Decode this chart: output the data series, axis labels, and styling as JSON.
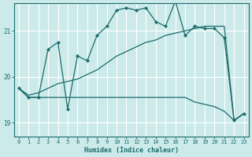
{
  "xlabel": "Humidex (Indice chaleur)",
  "bg_color": "#cceaea",
  "grid_color": "#ffffff",
  "line_color": "#1a6b6b",
  "xlim": [
    -0.5,
    23.5
  ],
  "ylim": [
    18.7,
    21.6
  ],
  "yticks": [
    19,
    20,
    21
  ],
  "xticks": [
    0,
    1,
    2,
    3,
    4,
    5,
    6,
    7,
    8,
    9,
    10,
    11,
    12,
    13,
    14,
    15,
    16,
    17,
    18,
    19,
    20,
    21,
    22,
    23
  ],
  "series1_x": [
    0,
    1,
    2,
    3,
    4,
    5,
    6,
    7,
    8,
    9,
    10,
    11,
    12,
    13,
    14,
    15,
    16,
    17,
    18,
    19,
    20,
    21,
    22,
    23
  ],
  "series1_y": [
    19.75,
    19.55,
    19.55,
    20.6,
    20.75,
    19.3,
    20.45,
    20.35,
    20.9,
    21.1,
    21.45,
    21.5,
    21.45,
    21.5,
    21.2,
    21.1,
    21.65,
    20.9,
    21.1,
    21.05,
    21.05,
    20.85,
    19.05,
    19.2
  ],
  "series2_x": [
    0,
    1,
    2,
    3,
    4,
    5,
    6,
    7,
    8,
    9,
    10,
    11,
    12,
    13,
    14,
    15,
    16,
    17,
    18,
    19,
    20,
    21,
    22,
    23
  ],
  "series2_y": [
    19.75,
    19.55,
    19.55,
    19.55,
    19.55,
    19.55,
    19.55,
    19.55,
    19.55,
    19.55,
    19.55,
    19.55,
    19.55,
    19.55,
    19.55,
    19.55,
    19.55,
    19.55,
    19.45,
    19.4,
    19.35,
    19.25,
    19.05,
    19.2
  ],
  "series3_x": [
    0,
    1,
    2,
    3,
    4,
    5,
    6,
    7,
    8,
    9,
    10,
    11,
    12,
    13,
    14,
    15,
    16,
    17,
    18,
    19,
    20,
    21,
    22,
    23
  ],
  "series3_y": [
    19.75,
    19.6,
    19.65,
    19.75,
    19.85,
    19.9,
    19.95,
    20.05,
    20.15,
    20.3,
    20.45,
    20.55,
    20.65,
    20.75,
    20.8,
    20.9,
    20.95,
    21.0,
    21.05,
    21.1,
    21.1,
    21.1,
    19.05,
    19.2
  ]
}
